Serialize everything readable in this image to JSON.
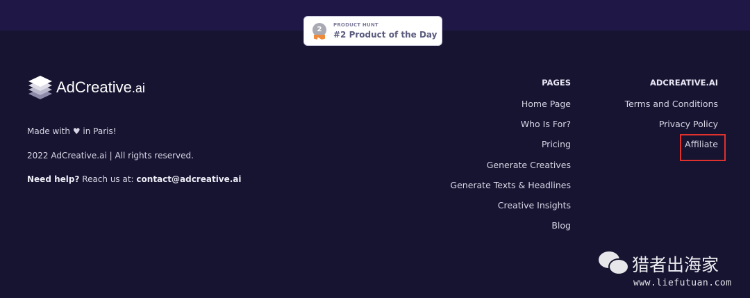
{
  "badge": {
    "kicker": "PRODUCT HUNT",
    "title": "#2 Product of the Day",
    "medal": "2"
  },
  "brand": {
    "name": "AdCreative",
    "suffix": ".ai"
  },
  "footer": {
    "made_pre": "Made with",
    "made_post": "in Paris!",
    "copyright": "2022 AdCreative.ai | All rights reserved.",
    "help_bold": "Need help?",
    "help_text": "Reach us at:",
    "email": "contact@adcreative.ai"
  },
  "pages": {
    "title": "PAGES",
    "items": [
      "Home Page",
      "Who Is For?",
      "Pricing",
      "Generate Creatives",
      "Generate Texts & Headlines",
      "Creative Insights",
      "Blog"
    ]
  },
  "company": {
    "title": "ADCREATIVE.AI",
    "items": [
      "Terms and Conditions",
      "Privacy Policy",
      "Affiliate"
    ]
  },
  "watermark": {
    "name": "猎者出海家",
    "url": "www.liefutuan.com"
  },
  "colors": {
    "background": "#171431",
    "highlight": "#e0312d"
  }
}
